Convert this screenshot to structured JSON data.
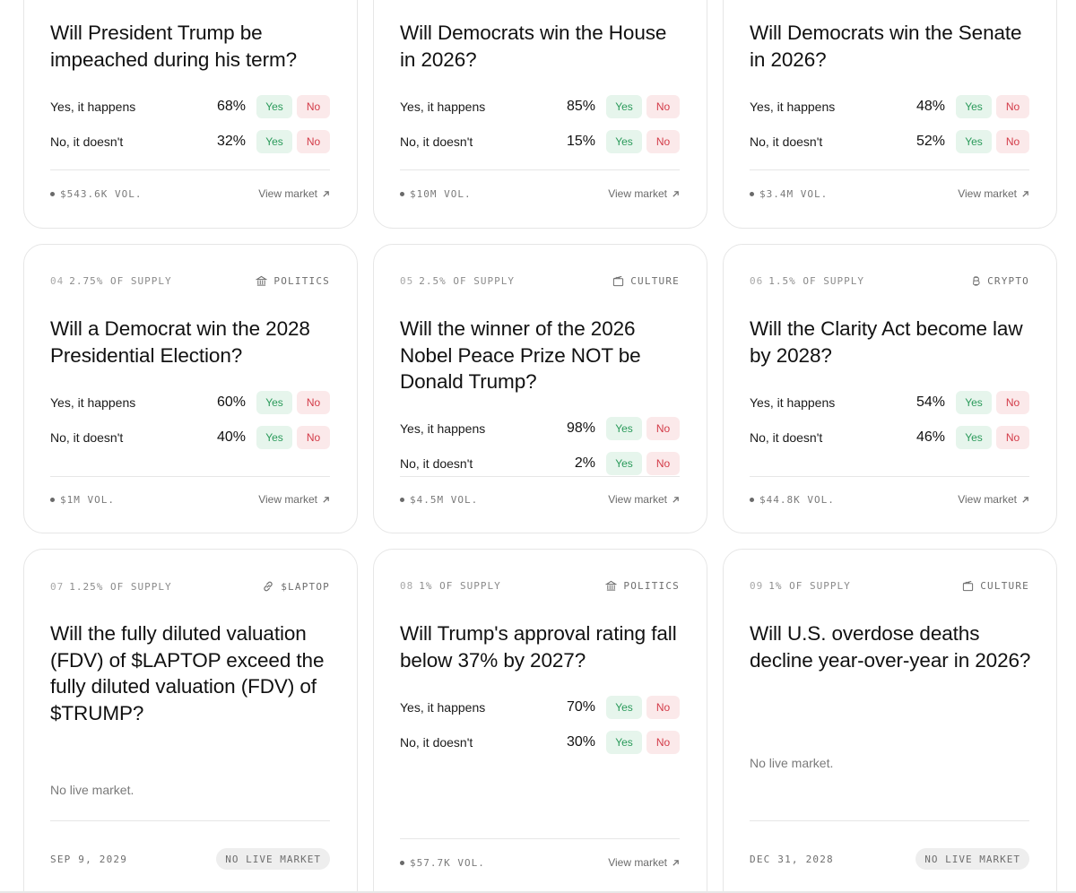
{
  "labels": {
    "yes_row": "Yes, it happens",
    "no_row": "No, it doesn't",
    "yes_btn": "Yes",
    "no_btn": "No",
    "view_market": "View market",
    "no_live_text": "No live market.",
    "no_live_badge": "NO LIVE MARKET"
  },
  "cards": {
    "c1": {
      "title": "Will President Trump be impeached during his term?",
      "yes_pct": "68%",
      "no_pct": "32%",
      "vol": "$543.6K VOL."
    },
    "c2": {
      "title": "Will Democrats win the House in 2026?",
      "yes_pct": "85%",
      "no_pct": "15%",
      "vol": "$10M VOL."
    },
    "c3": {
      "title": "Will Democrats win the Senate in 2026?",
      "yes_pct": "48%",
      "no_pct": "52%",
      "vol": "$3.4M VOL."
    },
    "c4": {
      "index": "04",
      "supply": "2.75% OF SUPPLY",
      "category": "POLITICS",
      "category_icon": "bank-icon",
      "title": "Will a Democrat win the 2028 Presidential Election?",
      "yes_pct": "60%",
      "no_pct": "40%",
      "vol": "$1M VOL."
    },
    "c5": {
      "index": "05",
      "supply": "2.5% OF SUPPLY",
      "category": "CULTURE",
      "category_icon": "film-icon",
      "title": "Will the winner of the 2026 Nobel Peace Prize NOT be Donald Trump?",
      "yes_pct": "98%",
      "no_pct": "2%",
      "vol": "$4.5M VOL."
    },
    "c6": {
      "index": "06",
      "supply": "1.5% OF SUPPLY",
      "category": "CRYPTO",
      "category_icon": "bitcoin-icon",
      "title": "Will the Clarity Act become law by 2028?",
      "yes_pct": "54%",
      "no_pct": "46%",
      "vol": "$44.8K VOL."
    },
    "c7": {
      "index": "07",
      "supply": "1.25% OF SUPPLY",
      "category": "$LAPTOP",
      "category_icon": "link-icon",
      "title": "Will the fully diluted valuation (FDV) of $LAPTOP exceed the fully diluted valuation (FDV) of $TRUMP?",
      "date": "SEP 9, 2029"
    },
    "c8": {
      "index": "08",
      "supply": "1% OF SUPPLY",
      "category": "POLITICS",
      "category_icon": "bank-icon",
      "title": "Will Trump's approval rating fall below 37% by 2027?",
      "yes_pct": "70%",
      "no_pct": "30%",
      "vol": "$57.7K VOL."
    },
    "c9": {
      "index": "09",
      "supply": "1% OF SUPPLY",
      "category": "CULTURE",
      "category_icon": "film-icon",
      "title": "Will U.S. overdose deaths decline year-over-year in 2026?",
      "date": "DEC 31, 2028"
    }
  },
  "colors": {
    "yes_bg": "#e6f5ec",
    "yes_text": "#2a9a5a",
    "no_bg": "#fbe9ea",
    "no_text": "#d33b48",
    "border": "#e6e6e6"
  }
}
